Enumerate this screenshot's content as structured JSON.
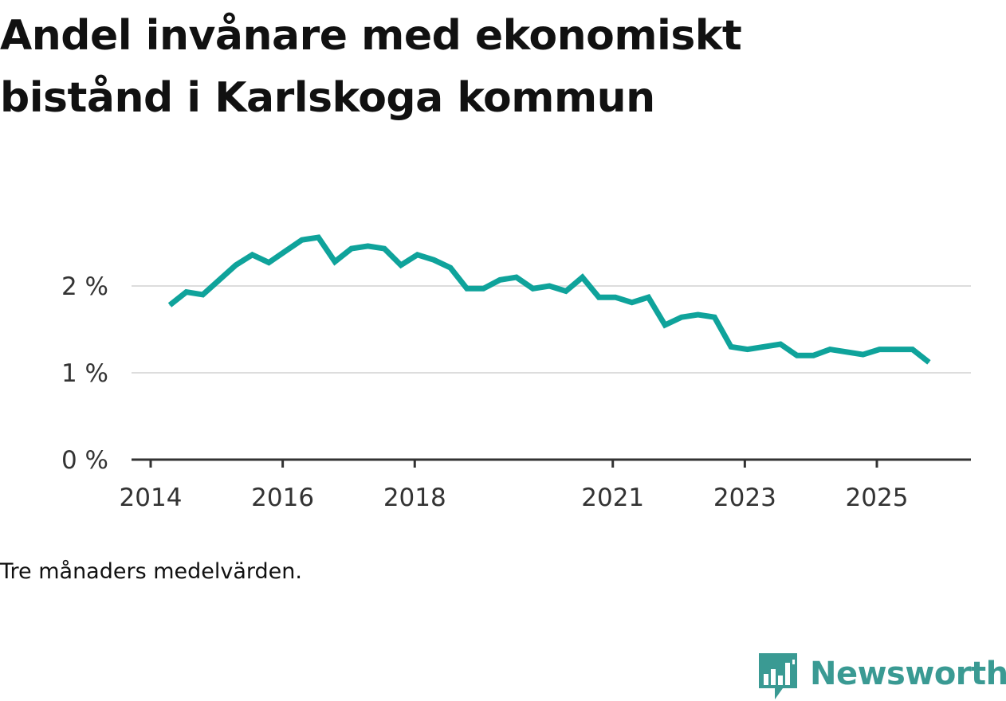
{
  "title": "Andel invånare med ekonomiskt bistånd i Karlskoga kommun",
  "caption": "Tre månaders medelvärden.",
  "brand": {
    "name": "Newsworthy",
    "icon": "newsworthy-logo-icon",
    "color": "#3a9a93"
  },
  "colors": {
    "line": "#0fa39b",
    "grid": "#dddddd",
    "axis": "#333333"
  },
  "chart_data": {
    "type": "line",
    "title": "Andel invånare med ekonomiskt bistånd i Karlskoga kommun",
    "xlabel": "",
    "ylabel": "",
    "unit": "%",
    "ylim": [
      0,
      2.8
    ],
    "yticks": [
      {
        "value": 0,
        "label": "0 %"
      },
      {
        "value": 1,
        "label": "1 %"
      },
      {
        "value": 2,
        "label": "2 %"
      }
    ],
    "xticks": [
      {
        "value": 2014.0,
        "label": "2014"
      },
      {
        "value": 2016.0,
        "label": "2016"
      },
      {
        "value": 2018.0,
        "label": "2018"
      },
      {
        "value": 2021.0,
        "label": "2021"
      },
      {
        "value": 2023.0,
        "label": "2023"
      },
      {
        "value": 2025.0,
        "label": "2025"
      }
    ],
    "xlim": [
      2013.7,
      2026.4
    ],
    "grid": true,
    "legend": "none",
    "series": [
      {
        "x": [
          2014.29,
          2014.54,
          2014.79,
          2015.04,
          2015.29,
          2015.54,
          2015.79,
          2016.04,
          2016.29,
          2016.54,
          2016.79,
          2017.04,
          2017.29,
          2017.54,
          2017.79,
          2018.04,
          2018.29,
          2018.54,
          2018.79,
          2019.04,
          2019.29,
          2019.54,
          2019.79,
          2020.04,
          2020.29,
          2020.54,
          2020.79,
          2021.04,
          2021.29,
          2021.54,
          2021.79,
          2022.04,
          2022.29,
          2022.54,
          2022.79,
          2023.04,
          2023.29,
          2023.54,
          2023.79,
          2024.04,
          2024.29,
          2024.54,
          2024.79,
          2025.04,
          2025.29,
          2025.54,
          2025.79
        ],
        "values": [
          1.78,
          1.93,
          1.9,
          2.07,
          2.24,
          2.36,
          2.27,
          2.4,
          2.53,
          2.56,
          2.28,
          2.43,
          2.46,
          2.43,
          2.24,
          2.36,
          2.3,
          2.21,
          1.97,
          1.97,
          2.07,
          2.1,
          1.97,
          2.0,
          1.94,
          2.1,
          1.87,
          1.87,
          1.81,
          1.87,
          1.55,
          1.64,
          1.67,
          1.64,
          1.3,
          1.27,
          1.3,
          1.33,
          1.2,
          1.2,
          1.27,
          1.24,
          1.21,
          1.27,
          1.27,
          1.27,
          1.12
        ]
      }
    ]
  }
}
